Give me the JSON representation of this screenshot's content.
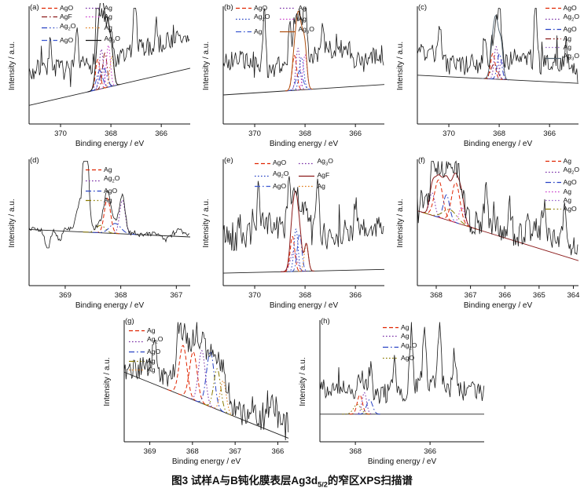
{
  "figure": {
    "caption": "图3 试样A与B钝化膜表层Ag3d_{5/2}的窄区XPS扫描谱"
  },
  "chart_data": [
    {
      "id": "a",
      "panel_label": "(a)",
      "type": "line",
      "xlabel": "Binding energy / eV",
      "ylabel": "Intensity / a.u.",
      "x_range": [
        371.25,
        364.85
      ],
      "x_ticks": [
        370,
        368,
        366
      ],
      "legend": [
        {
          "label": "AgO",
          "color": "#e02400",
          "style": "dash"
        },
        {
          "label": "Ag",
          "color": "#7a2fa6",
          "style": "dot"
        },
        {
          "label": "AgF",
          "color": "#8b1a1a",
          "style": "dashdot"
        },
        {
          "label": "Ag",
          "color": "#cc3fcc",
          "style": "dot"
        },
        {
          "label": "Ag_2O",
          "color": "#2742c4",
          "style": "dashdotdot"
        },
        {
          "label": "Ag",
          "color": "#e07b18",
          "style": "dot"
        },
        {
          "label": "AgO",
          "color": "#3a57d0",
          "style": "dashdot"
        },
        {
          "label": "Ag_3O",
          "color": "#141414",
          "style": "solid"
        }
      ],
      "baseline": {
        "y_left": 0.84,
        "y_right": 0.52,
        "color": "#222222"
      },
      "raw": {
        "seed": 7,
        "noise": 0.085,
        "offset": 0.24,
        "follow": 0.6,
        "spikes": [
          {
            "x": 370.4,
            "h": 0.2
          },
          {
            "x": 369.35,
            "h": 0.3
          },
          {
            "x": 368.55,
            "h": 0.4
          },
          {
            "x": 367.05,
            "h": 0.72
          },
          {
            "x": 366.2,
            "h": 0.22
          }
        ]
      },
      "peaks": [
        {
          "center": 368.52,
          "width": 0.09,
          "height": 0.26,
          "legend_ref": 0
        },
        {
          "center": 368.38,
          "width": 0.08,
          "height": 0.34,
          "legend_ref": 1
        },
        {
          "center": 368.24,
          "width": 0.09,
          "height": 0.3,
          "legend_ref": 2
        },
        {
          "center": 368.1,
          "width": 0.08,
          "height": 0.36,
          "legend_ref": 3
        },
        {
          "center": 368.3,
          "width": 0.13,
          "height": 0.18,
          "legend_ref": 4
        },
        {
          "center": 367.96,
          "width": 0.08,
          "height": 0.26,
          "legend_ref": 5
        },
        {
          "center": 368.45,
          "width": 0.12,
          "height": 0.16,
          "legend_ref": 6
        }
      ],
      "envelope": {
        "legend_ref": 7
      }
    },
    {
      "id": "b",
      "panel_label": "(b)",
      "type": "line",
      "xlabel": "Binding energy / eV",
      "ylabel": "Intensity / a.u.",
      "x_range": [
        371.25,
        364.85
      ],
      "x_ticks": [
        370,
        368,
        366
      ],
      "legend": [
        {
          "label": "AgO",
          "color": "#e02400",
          "style": "dash"
        },
        {
          "label": "Ag",
          "color": "#7a2fa6",
          "style": "dot"
        },
        {
          "label": "Ag_2O",
          "color": "#2742c4",
          "style": "dot"
        },
        {
          "label": "Ag",
          "color": "#cc3fcc",
          "style": "dot"
        },
        {
          "label": "Ag",
          "color": "#3a57d0",
          "style": "dashdot"
        },
        {
          "label": "Ag_3O",
          "color": "#b05010",
          "style": "solid"
        }
      ],
      "baseline": {
        "y_left": 0.75,
        "y_right": 0.66,
        "color": "#222222"
      },
      "raw": {
        "seed": 21,
        "noise": 0.09,
        "offset": 0.28,
        "follow": 0.5,
        "spikes": [
          {
            "x": 369.62,
            "h": 0.55
          },
          {
            "x": 368.6,
            "h": 0.3
          },
          {
            "x": 368.0,
            "h": 0.5
          },
          {
            "x": 367.3,
            "h": 0.28
          }
        ]
      },
      "peaks": [
        {
          "center": 368.42,
          "width": 0.09,
          "height": 0.3,
          "legend_ref": 0
        },
        {
          "center": 368.28,
          "width": 0.08,
          "height": 0.36,
          "legend_ref": 1
        },
        {
          "center": 368.14,
          "width": 0.09,
          "height": 0.28,
          "legend_ref": 2
        },
        {
          "center": 368.0,
          "width": 0.08,
          "height": 0.3,
          "legend_ref": 3
        },
        {
          "center": 368.22,
          "width": 0.13,
          "height": 0.16,
          "legend_ref": 4
        }
      ],
      "envelope": {
        "legend_ref": 5
      }
    },
    {
      "id": "c",
      "panel_label": "(c)",
      "type": "line",
      "xlabel": "Binding energy / eV",
      "ylabel": "Intensity / a.u.",
      "x_range": [
        371.25,
        364.85
      ],
      "x_ticks": [
        370,
        368,
        366
      ],
      "legend": [
        {
          "label": "AgO",
          "color": "#e02400",
          "style": "dash"
        },
        {
          "label": "Ag_2O",
          "color": "#7a2fa6",
          "style": "dot"
        },
        {
          "label": "AgO",
          "color": "#2742c4",
          "style": "dashdot"
        },
        {
          "label": "Ag",
          "color": "#8b1a1a",
          "style": "dashdotdot"
        },
        {
          "label": "Ag",
          "color": "#9a66cc",
          "style": "dot"
        },
        {
          "label": "Ag_3O",
          "color": "#50616e",
          "style": "solid"
        }
      ],
      "baseline": {
        "y_left": 0.58,
        "y_right": 0.65,
        "color": "#222222"
      },
      "raw": {
        "seed": 33,
        "noise": 0.09,
        "offset": 0.14,
        "follow": 0.6,
        "spikes": [
          {
            "x": 370.35,
            "h": 0.28
          },
          {
            "x": 368.6,
            "h": 0.28
          },
          {
            "x": 368.0,
            "h": 0.4
          },
          {
            "x": 366.55,
            "h": 0.72
          },
          {
            "x": 365.35,
            "h": 0.25
          }
        ]
      },
      "peaks": [
        {
          "center": 368.25,
          "width": 0.09,
          "height": 0.22,
          "legend_ref": 0
        },
        {
          "center": 368.12,
          "width": 0.08,
          "height": 0.28,
          "legend_ref": 1
        },
        {
          "center": 367.99,
          "width": 0.09,
          "height": 0.22,
          "legend_ref": 2
        },
        {
          "center": 368.2,
          "width": 0.13,
          "height": 0.13,
          "legend_ref": 3
        },
        {
          "center": 367.9,
          "width": 0.07,
          "height": 0.17,
          "legend_ref": 4
        }
      ],
      "envelope": {
        "legend_ref": 5
      }
    },
    {
      "id": "d",
      "panel_label": "(d)",
      "type": "line",
      "xlabel": "Binding energy / eV",
      "ylabel": "Intensity / a.u.",
      "x_range": [
        369.65,
        366.75
      ],
      "x_ticks": [
        369,
        368,
        367
      ],
      "legend": [
        {
          "label": "Ag",
          "color": "#e02400",
          "style": "dash"
        },
        {
          "label": "Ag_2O",
          "color": "#7a2fa6",
          "style": "dot"
        },
        {
          "label": "AgO",
          "color": "#2742c4",
          "style": "dashdot"
        },
        {
          "label": "Ag",
          "color": "#8a7a00",
          "style": "dashdotdot"
        }
      ],
      "baseline": {
        "y_left": 0.55,
        "y_right": 0.61,
        "color": "#222222"
      },
      "raw": {
        "seed": 5,
        "noise": 0.016,
        "offset": 0.012,
        "follow": 1.0,
        "spikes": [
          {
            "x": 368.63,
            "h": 0.95
          },
          {
            "x": 368.76,
            "h": 0.18
          },
          {
            "x": 369.32,
            "h": -0.16
          },
          {
            "x": 369.1,
            "h": -0.09
          },
          {
            "x": 367.2,
            "h": -0.05
          },
          {
            "x": 366.95,
            "h": 0.05
          }
        ]
      },
      "peaks": [
        {
          "center": 368.24,
          "width": 0.055,
          "height": 0.28,
          "legend_ref": 0
        },
        {
          "center": 367.97,
          "width": 0.05,
          "height": 0.27,
          "legend_ref": 1
        },
        {
          "center": 368.1,
          "width": 0.1,
          "height": 0.08,
          "legend_ref": 2
        },
        {
          "center": 368.36,
          "width": 0.08,
          "height": 0.06,
          "legend_ref": 3
        }
      ]
    },
    {
      "id": "e",
      "panel_label": "(e)",
      "type": "line",
      "xlabel": "Binding energy / eV",
      "ylabel": "Intensity / a.u.",
      "x_range": [
        371.25,
        364.85
      ],
      "x_ticks": [
        370,
        368,
        366
      ],
      "legend": [
        {
          "label": "AgO",
          "color": "#e02400",
          "style": "dash"
        },
        {
          "label": "Ag_3O",
          "color": "#7a2fa6",
          "style": "dot"
        },
        {
          "label": "Ag_2O",
          "color": "#2742c4",
          "style": "dot"
        },
        {
          "label": "AgF",
          "color": "#8b1a1a",
          "style": "solid"
        },
        {
          "label": "AgO",
          "color": "#3a57d0",
          "style": "dashdot"
        },
        {
          "label": "Ag",
          "color": "#e07b18",
          "style": "dot"
        }
      ],
      "baseline": {
        "y_left": 0.9,
        "y_right": 0.87,
        "color": "#222222"
      },
      "raw": {
        "seed": 42,
        "noise": 0.1,
        "offset": 0.34,
        "follow": 0.45,
        "spikes": [
          {
            "x": 370.6,
            "h": 0.22
          },
          {
            "x": 369.85,
            "h": 0.4
          },
          {
            "x": 368.65,
            "h": 0.38
          },
          {
            "x": 367.5,
            "h": 0.42
          },
          {
            "x": 366.0,
            "h": 0.22
          }
        ]
      },
      "peaks": [
        {
          "center": 368.5,
          "width": 0.09,
          "height": 0.28,
          "legend_ref": 0
        },
        {
          "center": 368.36,
          "width": 0.08,
          "height": 0.34,
          "legend_ref": 2
        },
        {
          "center": 368.22,
          "width": 0.09,
          "height": 0.3,
          "legend_ref": 4
        },
        {
          "center": 368.45,
          "width": 0.13,
          "height": 0.16,
          "legend_ref": 1
        },
        {
          "center": 367.95,
          "width": 0.08,
          "height": 0.22,
          "legend_ref": 5
        }
      ],
      "envelope": {
        "legend_ref": 3
      }
    },
    {
      "id": "f",
      "panel_label": "(f)",
      "type": "line",
      "xlabel": "Binding energy / eV",
      "ylabel": "Intensity / a.u.",
      "x_range": [
        368.55,
        363.85
      ],
      "x_ticks": [
        368,
        367,
        366,
        365,
        364
      ],
      "legend": [
        {
          "label": "Ag",
          "color": "#e02400",
          "style": "dash"
        },
        {
          "label": "Ag_2O",
          "color": "#7a2fa6",
          "style": "dot"
        },
        {
          "label": "AgO",
          "color": "#2742c4",
          "style": "dashdot"
        },
        {
          "label": "Ag",
          "color": "#cc3fcc",
          "style": "dot"
        },
        {
          "label": "Ag",
          "color": "#9a66cc",
          "style": "dot"
        },
        {
          "label": "AgO",
          "color": "#8a7a00",
          "style": "dashdotdot"
        }
      ],
      "baseline": {
        "y_left": 0.4,
        "y_right": 0.8,
        "color": "#8b1a1a"
      },
      "raw": {
        "seed": 13,
        "noise": 0.1,
        "offset": 0.09,
        "follow": 0.8,
        "spikes": [
          {
            "x": 368.1,
            "h": 0.22
          },
          {
            "x": 366.55,
            "h": 0.28
          },
          {
            "x": 365.85,
            "h": 0.24
          },
          {
            "x": 364.85,
            "h": 0.2
          },
          {
            "x": 364.25,
            "h": 0.28
          }
        ]
      },
      "peaks": [
        {
          "center": 367.93,
          "width": 0.12,
          "height": 0.3,
          "legend_ref": 0
        },
        {
          "center": 367.43,
          "width": 0.12,
          "height": 0.32,
          "legend_ref": 0
        },
        {
          "center": 368.12,
          "width": 0.08,
          "height": 0.18,
          "legend_ref": 1
        },
        {
          "center": 367.7,
          "width": 0.09,
          "height": 0.2,
          "legend_ref": 2
        },
        {
          "center": 367.25,
          "width": 0.08,
          "height": 0.14,
          "legend_ref": 3
        },
        {
          "center": 367.6,
          "width": 0.2,
          "height": 0.09,
          "legend_ref": 5
        }
      ],
      "envelope": {
        "color": "#8b1a1a"
      }
    },
    {
      "id": "g",
      "panel_label": "(g)",
      "type": "line",
      "xlabel": "Binding energy / eV",
      "ylabel": "Intensity / a.u.",
      "x_range": [
        369.6,
        365.75
      ],
      "x_ticks": [
        369,
        368,
        367,
        366
      ],
      "legend": [
        {
          "label": "Ag",
          "color": "#e02400",
          "style": "dash"
        },
        {
          "label": "Ag_2O",
          "color": "#7a2fa6",
          "style": "dot"
        },
        {
          "label": "AgO",
          "color": "#2742c4",
          "style": "dashdot"
        },
        {
          "label": "Ag",
          "color": "#8a7a00",
          "style": "dashdotdot"
        },
        {
          "label": "Ag",
          "color": "#e07b18",
          "style": "dot"
        }
      ],
      "baseline": {
        "y_left": 0.42,
        "y_right": 0.97,
        "color": "#222222"
      },
      "raw": {
        "seed": 55,
        "noise": 0.095,
        "offset": 0.09,
        "follow": 0.85,
        "spikes": [
          {
            "x": 368.9,
            "h": 0.28
          },
          {
            "x": 368.35,
            "h": 0.22
          },
          {
            "x": 366.6,
            "h": 0.16
          },
          {
            "x": 366.15,
            "h": 0.14
          }
        ]
      },
      "peaks": [
        {
          "center": 368.22,
          "width": 0.09,
          "height": 0.42,
          "legend_ref": 0
        },
        {
          "center": 367.98,
          "width": 0.09,
          "height": 0.4,
          "legend_ref": 0
        },
        {
          "center": 367.78,
          "width": 0.08,
          "height": 0.44,
          "legend_ref": 1
        },
        {
          "center": 367.58,
          "width": 0.09,
          "height": 0.46,
          "legend_ref": 2
        },
        {
          "center": 367.42,
          "width": 0.08,
          "height": 0.34,
          "legend_ref": 3
        },
        {
          "center": 367.28,
          "width": 0.07,
          "height": 0.26,
          "legend_ref": 4
        }
      ]
    },
    {
      "id": "h",
      "panel_label": "(h)",
      "type": "line",
      "xlabel": "Binding energy / eV",
      "ylabel": "Intensity / a.u.",
      "x_range": [
        368.95,
        364.55
      ],
      "x_ticks": [
        368,
        366
      ],
      "legend": [
        {
          "label": "Ag",
          "color": "#e02400",
          "style": "dash"
        },
        {
          "label": "Ag",
          "color": "#7a2fa6",
          "style": "dot"
        },
        {
          "label": "Ag_2O",
          "color": "#2742c4",
          "style": "dashdot"
        },
        {
          "label": "AgO",
          "color": "#8a7a00",
          "style": "dot"
        }
      ],
      "baseline": {
        "y_left": 0.77,
        "y_right": 0.77,
        "color": "#222222"
      },
      "raw": {
        "seed": 77,
        "noise": 0.085,
        "offset": 0.19,
        "follow": 0.6,
        "spikes": [
          {
            "x": 367.6,
            "h": 0.16
          },
          {
            "x": 366.95,
            "h": 0.26
          },
          {
            "x": 366.5,
            "h": 0.55
          },
          {
            "x": 366.15,
            "h": 0.42
          },
          {
            "x": 365.75,
            "h": 0.5
          },
          {
            "x": 365.35,
            "h": 0.3
          }
        ]
      },
      "peaks": [
        {
          "center": 367.88,
          "width": 0.07,
          "height": 0.16,
          "legend_ref": 0
        },
        {
          "center": 367.76,
          "width": 0.06,
          "height": 0.18,
          "legend_ref": 1
        },
        {
          "center": 367.62,
          "width": 0.08,
          "height": 0.12,
          "legend_ref": 2
        },
        {
          "center": 367.95,
          "width": 0.1,
          "height": 0.08,
          "legend_ref": 3
        }
      ]
    }
  ]
}
